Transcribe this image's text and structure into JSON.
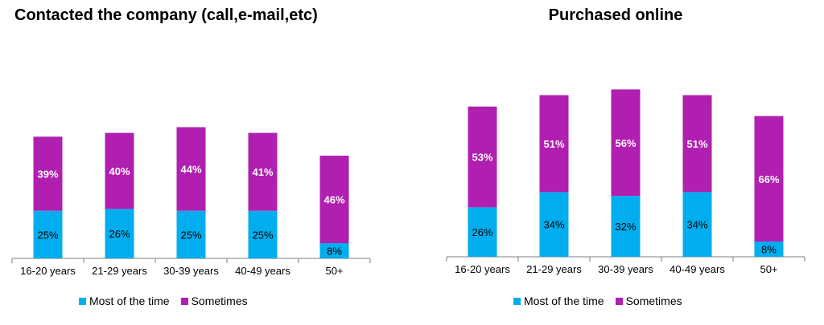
{
  "colors": {
    "most": "#00AEEF",
    "sometimes": "#B01FAF",
    "axis": "#7f7f7f"
  },
  "chart_data": [
    {
      "type": "bar",
      "stacked": true,
      "title": "Contacted the company (call,e-mail,etc)",
      "categories": [
        "16-20 years",
        "21-29 years",
        "30-39 years",
        "40-49 years",
        "50+"
      ],
      "series": [
        {
          "name": "Most of the time",
          "values": [
            25,
            26,
            25,
            25,
            8
          ],
          "labels": [
            "25%",
            "26%",
            "25%",
            "25%",
            "8%"
          ]
        },
        {
          "name": "Sometimes",
          "values": [
            39,
            40,
            44,
            41,
            46
          ],
          "labels": [
            "39%",
            "40%",
            "44%",
            "41%",
            "46%"
          ]
        }
      ],
      "legend_position": "bottom"
    },
    {
      "type": "bar",
      "stacked": true,
      "title": "Purchased online",
      "categories": [
        "16-20 years",
        "21-29 years",
        "30-39 years",
        "40-49 years",
        "50+"
      ],
      "series": [
        {
          "name": "Most of the time",
          "values": [
            26,
            34,
            32,
            34,
            8
          ],
          "labels": [
            "26%",
            "34%",
            "32%",
            "34%",
            "8%"
          ]
        },
        {
          "name": "Sometimes",
          "values": [
            53,
            51,
            56,
            51,
            66
          ],
          "labels": [
            "53%",
            "51%",
            "56%",
            "51%",
            "66%"
          ]
        }
      ],
      "legend_position": "bottom"
    }
  ]
}
